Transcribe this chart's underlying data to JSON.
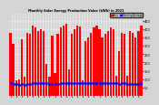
{
  "title": "Monthly Solar Energy Production Value (kWh) in 2021",
  "bar_color": "#ff0000",
  "avg_color": "#0000ff",
  "background_color": "#d4d4d4",
  "plot_bg": "#d4d4d4",
  "grid_color": "#ffffff",
  "values": [
    380,
    310,
    95,
    100,
    340,
    115,
    380,
    370,
    420,
    410,
    390,
    400,
    390,
    190,
    115,
    360,
    135,
    370,
    410,
    420,
    430,
    160,
    370,
    400,
    420,
    415,
    95,
    330,
    350,
    380,
    410,
    420,
    400,
    350,
    370,
    390,
    410,
    400,
    120,
    270,
    380,
    370,
    120,
    390,
    380,
    350,
    390,
    420
  ],
  "running_avg": [
    75,
    72,
    70,
    68,
    70,
    68,
    70,
    72,
    74,
    76,
    76,
    77,
    77,
    74,
    72,
    73,
    71,
    72,
    74,
    75,
    77,
    74,
    74,
    76,
    77,
    78,
    75,
    74,
    74,
    75,
    76,
    77,
    77,
    76,
    76,
    77,
    78,
    78,
    74,
    73,
    74,
    74,
    71,
    72,
    73,
    73,
    73,
    74
  ],
  "ylim": [
    0,
    500
  ],
  "yticks": [
    50,
    100,
    150,
    200,
    250,
    300,
    350,
    400,
    450
  ],
  "legend_labels": [
    "Value",
    "Running Average"
  ],
  "num_bars": 48
}
